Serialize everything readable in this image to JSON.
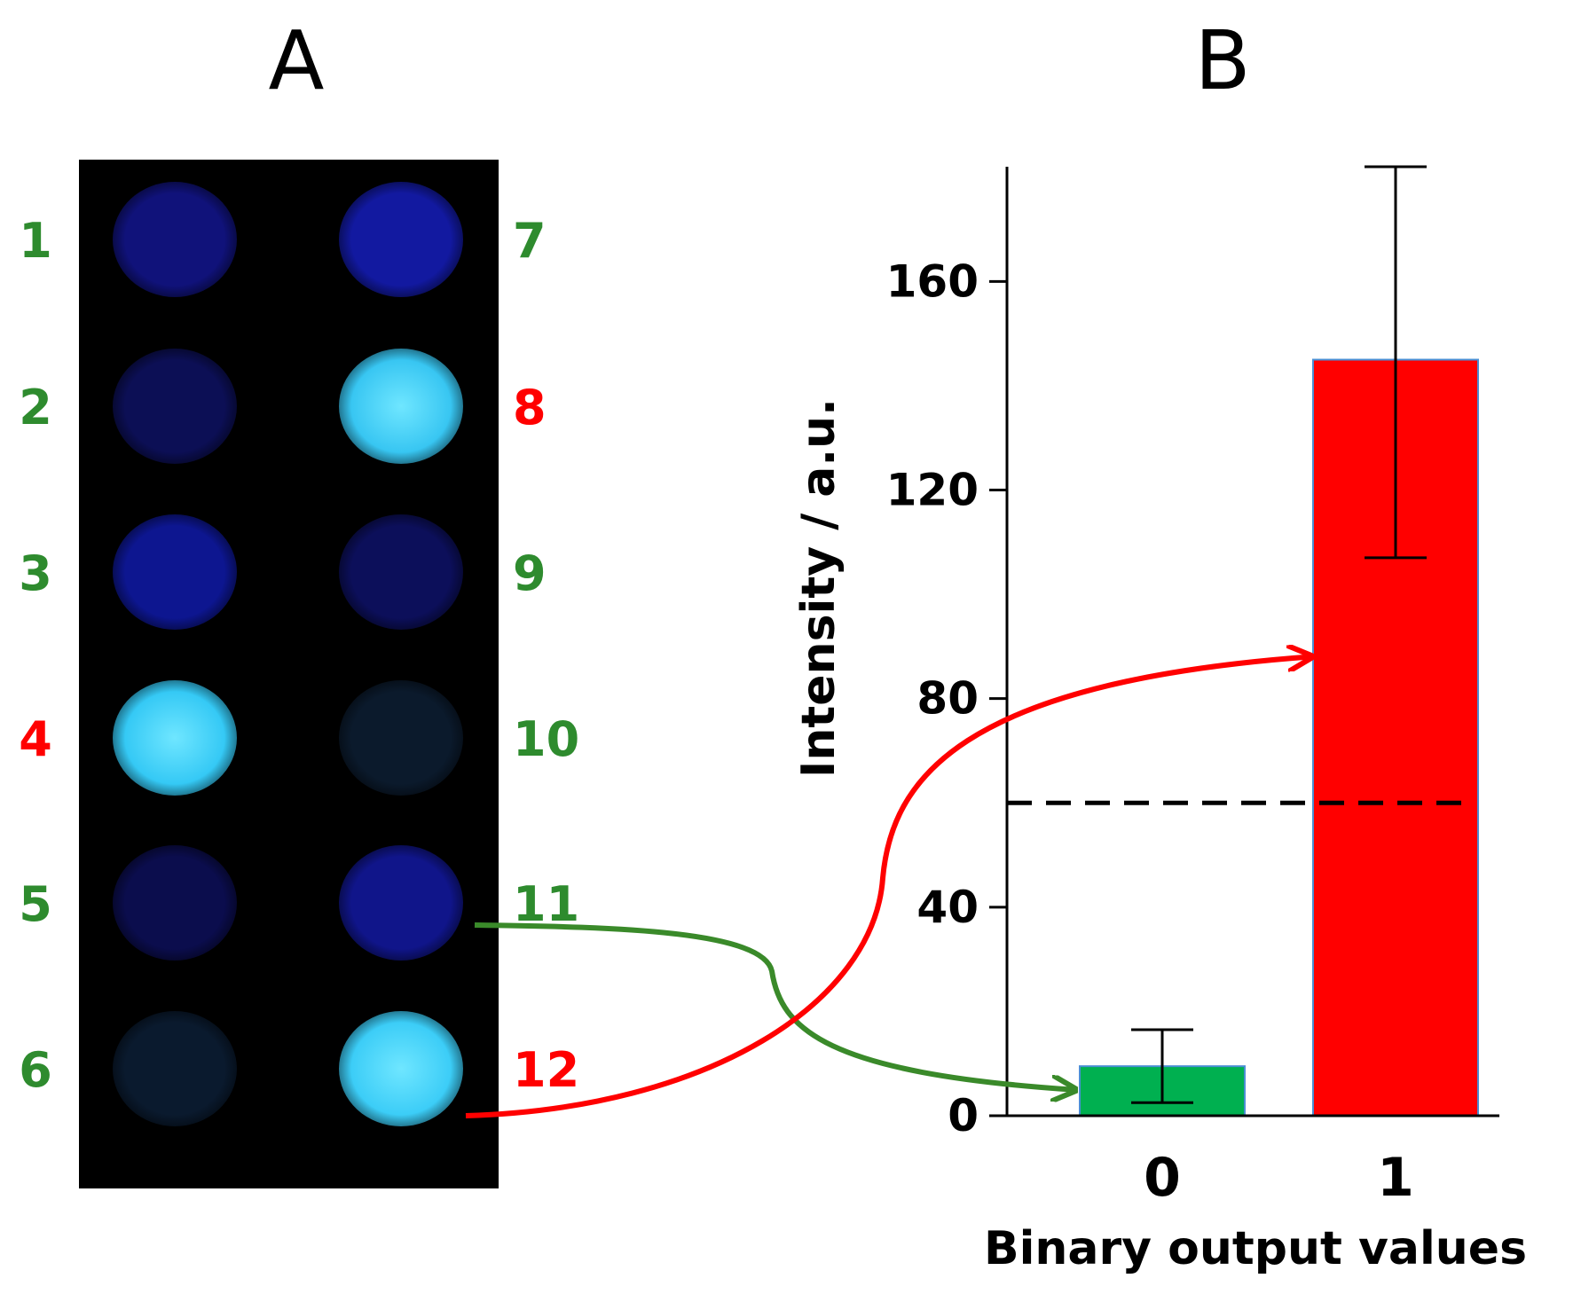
{
  "panel_a": {
    "letter": "A",
    "spots": [
      {
        "label": "1",
        "column": "left",
        "label_color": "#2e8b2e",
        "glow": "#10127a",
        "intensity": 0.18
      },
      {
        "label": "2",
        "column": "left",
        "label_color": "#2e8b2e",
        "glow": "#0c0f55",
        "intensity": 0.12
      },
      {
        "label": "3",
        "column": "left",
        "label_color": "#2e8b2e",
        "glow": "#0d1690",
        "intensity": 0.22
      },
      {
        "label": "4",
        "column": "left",
        "label_color": "#ff0000",
        "glow": "#35c9f5",
        "intensity": 1.0
      },
      {
        "label": "5",
        "column": "left",
        "label_color": "#2e8b2e",
        "glow": "#0b0d4d",
        "intensity": 0.1
      },
      {
        "label": "6",
        "column": "left",
        "label_color": "#2e8b2e",
        "glow": "#0a1a2e",
        "intensity": 0.08
      },
      {
        "label": "7",
        "column": "right",
        "label_color": "#2e8b2e",
        "glow": "#1219a0",
        "intensity": 0.25
      },
      {
        "label": "8",
        "column": "right",
        "label_color": "#ff0000",
        "glow": "#38c6f2",
        "intensity": 1.0
      },
      {
        "label": "9",
        "column": "right",
        "label_color": "#2e8b2e",
        "glow": "#0c0f5a",
        "intensity": 0.12
      },
      {
        "label": "10",
        "column": "right",
        "label_color": "#2e8b2e",
        "glow": "#0b1a2c",
        "intensity": 0.08
      },
      {
        "label": "11",
        "column": "right",
        "label_color": "#2e8b2e",
        "glow": "#10158a",
        "intensity": 0.2
      },
      {
        "label": "12",
        "column": "right",
        "label_color": "#ff0000",
        "glow": "#3ccdf7",
        "intensity": 1.0
      }
    ]
  },
  "panel_b": {
    "letter": "B"
  },
  "chart_data": {
    "type": "bar",
    "title": "",
    "xlabel": "Binary output values",
    "ylabel": "Intensity / a.u.",
    "categories": [
      "0",
      "1"
    ],
    "values": [
      9.5,
      145
    ],
    "error_low": [
      2.5,
      107
    ],
    "error_high": [
      16.5,
      182
    ],
    "bar_colors": [
      "#00b050",
      "#ff0000"
    ],
    "bar_edge_color": "#4a8fd4",
    "ylim": [
      0,
      182
    ],
    "yticks": [
      0,
      40,
      80,
      120,
      160
    ],
    "threshold": 60,
    "threshold_style": "dashed"
  },
  "arrows": [
    {
      "from_spot": "11",
      "to_category": "0",
      "color": "#3a8a2a"
    },
    {
      "from_spot": "12",
      "to_category": "1",
      "color": "#ff0000"
    }
  ]
}
